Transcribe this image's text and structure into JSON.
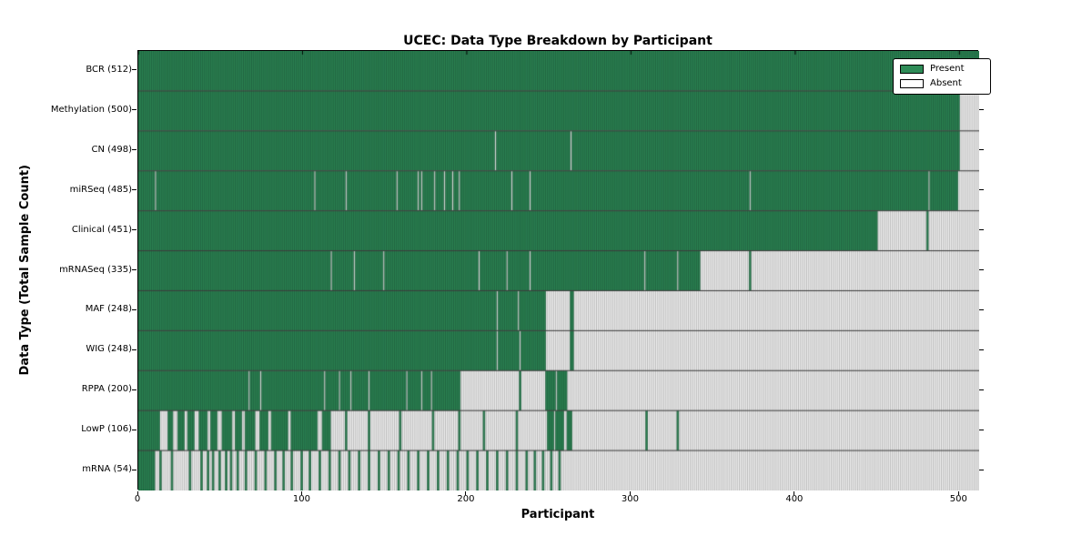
{
  "chart": {
    "title": "UCEC: Data Type Breakdown by Participant",
    "xlabel": "Participant",
    "ylabel": "Data Type (Total Sample Count)"
  },
  "legend": {
    "present_label": "Present",
    "absent_label": "Absent"
  },
  "chart_data": {
    "type": "heatmap",
    "title": "UCEC: Data Type Breakdown by Participant",
    "xlabel": "Participant",
    "ylabel": "Data Type (Total Sample Count)",
    "legend_position": "upper right",
    "grid": false,
    "n_participants": 512,
    "x_range": [
      0,
      512
    ],
    "x_ticks": [
      0,
      100,
      200,
      300,
      400,
      500
    ],
    "colors": {
      "present": "#2e8b57",
      "present_edge": "#1b5236",
      "absent": "#ffffff",
      "absent_edge": "#989898",
      "row_divider": "#3a3a3a",
      "frame": "#000000"
    },
    "legend_entries": [
      {
        "label": "Present",
        "color": "#2e8b57"
      },
      {
        "label": "Absent",
        "color": "#ffffff"
      }
    ],
    "rows": [
      {
        "data_type": "BCR",
        "count": 512,
        "label": "BCR (512)",
        "present_ranges": [
          [
            0,
            512
          ]
        ]
      },
      {
        "data_type": "Methylation",
        "count": 500,
        "label": "Methylation (500)",
        "present_ranges": [
          [
            0,
            500
          ]
        ]
      },
      {
        "data_type": "CN",
        "count": 498,
        "label": "CN (498)",
        "present_ranges": [
          [
            0,
            217
          ],
          [
            218,
            263
          ],
          [
            264,
            500
          ]
        ]
      },
      {
        "data_type": "miRSeq",
        "count": 485,
        "label": "miRSeq (485)",
        "present_ranges": [
          [
            0,
            10
          ],
          [
            11,
            107
          ],
          [
            108,
            126
          ],
          [
            127,
            157
          ],
          [
            158,
            170
          ],
          [
            171,
            172
          ],
          [
            173,
            180
          ],
          [
            181,
            186
          ],
          [
            187,
            191
          ],
          [
            192,
            195
          ],
          [
            196,
            227
          ],
          [
            228,
            238
          ],
          [
            239,
            372
          ],
          [
            373,
            481
          ],
          [
            482,
            499
          ]
        ]
      },
      {
        "data_type": "Clinical",
        "count": 451,
        "label": "Clinical (451)",
        "present_ranges": [
          [
            0,
            450
          ],
          [
            480,
            481
          ]
        ]
      },
      {
        "data_type": "mRNASeq",
        "count": 335,
        "label": "mRNASeq (335)",
        "present_ranges": [
          [
            0,
            117
          ],
          [
            118,
            131
          ],
          [
            132,
            149
          ],
          [
            150,
            207
          ],
          [
            208,
            224
          ],
          [
            225,
            238
          ],
          [
            239,
            308
          ],
          [
            309,
            328
          ],
          [
            329,
            342
          ],
          [
            372,
            373
          ]
        ]
      },
      {
        "data_type": "MAF",
        "count": 248,
        "label": "MAF (248)",
        "present_ranges": [
          [
            0,
            218
          ],
          [
            219,
            231
          ],
          [
            232,
            248
          ],
          [
            263,
            265
          ]
        ]
      },
      {
        "data_type": "WIG",
        "count": 248,
        "label": "WIG (248)",
        "present_ranges": [
          [
            0,
            218
          ],
          [
            219,
            232
          ],
          [
            233,
            248
          ],
          [
            263,
            265
          ]
        ]
      },
      {
        "data_type": "RPPA",
        "count": 200,
        "label": "RPPA (200)",
        "present_ranges": [
          [
            0,
            67
          ],
          [
            68,
            74
          ],
          [
            75,
            113
          ],
          [
            114,
            122
          ],
          [
            123,
            129
          ],
          [
            130,
            140
          ],
          [
            141,
            163
          ],
          [
            164,
            172
          ],
          [
            173,
            178
          ],
          [
            179,
            196
          ],
          [
            232,
            233
          ],
          [
            248,
            254
          ],
          [
            255,
            261
          ]
        ]
      },
      {
        "data_type": "LowP",
        "count": 106,
        "label": "LowP (106)",
        "present_ranges": [
          [
            0,
            13
          ],
          [
            18,
            21
          ],
          [
            24,
            28
          ],
          [
            30,
            34
          ],
          [
            37,
            42
          ],
          [
            44,
            48
          ],
          [
            51,
            57
          ],
          [
            59,
            63
          ],
          [
            65,
            71
          ],
          [
            74,
            79
          ],
          [
            81,
            91
          ],
          [
            93,
            109
          ],
          [
            112,
            117
          ],
          [
            126,
            127
          ],
          [
            140,
            141
          ],
          [
            159,
            160
          ],
          [
            179,
            180
          ],
          [
            195,
            196
          ],
          [
            210,
            211
          ],
          [
            230,
            231
          ],
          [
            249,
            253
          ],
          [
            254,
            259
          ],
          [
            261,
            264
          ],
          [
            309,
            310
          ],
          [
            328,
            329
          ]
        ]
      },
      {
        "data_type": "mRNA",
        "count": 54,
        "label": "mRNA (54)",
        "present_ranges": [
          [
            0,
            10
          ],
          [
            13,
            14
          ],
          [
            20,
            21
          ],
          [
            31,
            32
          ],
          [
            38,
            39
          ],
          [
            42,
            43
          ],
          [
            45,
            46
          ],
          [
            49,
            50
          ],
          [
            53,
            54
          ],
          [
            56,
            57
          ],
          [
            60,
            61
          ],
          [
            65,
            66
          ],
          [
            71,
            72
          ],
          [
            77,
            78
          ],
          [
            83,
            84
          ],
          [
            88,
            89
          ],
          [
            93,
            94
          ],
          [
            99,
            100
          ],
          [
            104,
            105
          ],
          [
            110,
            111
          ],
          [
            116,
            117
          ],
          [
            122,
            123
          ],
          [
            128,
            129
          ],
          [
            134,
            135
          ],
          [
            140,
            141
          ],
          [
            146,
            147
          ],
          [
            152,
            153
          ],
          [
            158,
            159
          ],
          [
            164,
            165
          ],
          [
            170,
            171
          ],
          [
            176,
            177
          ],
          [
            182,
            183
          ],
          [
            188,
            189
          ],
          [
            194,
            195
          ],
          [
            200,
            201
          ],
          [
            206,
            207
          ],
          [
            212,
            213
          ],
          [
            218,
            219
          ],
          [
            224,
            225
          ],
          [
            230,
            231
          ],
          [
            236,
            237
          ],
          [
            241,
            242
          ],
          [
            246,
            247
          ],
          [
            251,
            252
          ],
          [
            256,
            257
          ]
        ]
      }
    ]
  }
}
